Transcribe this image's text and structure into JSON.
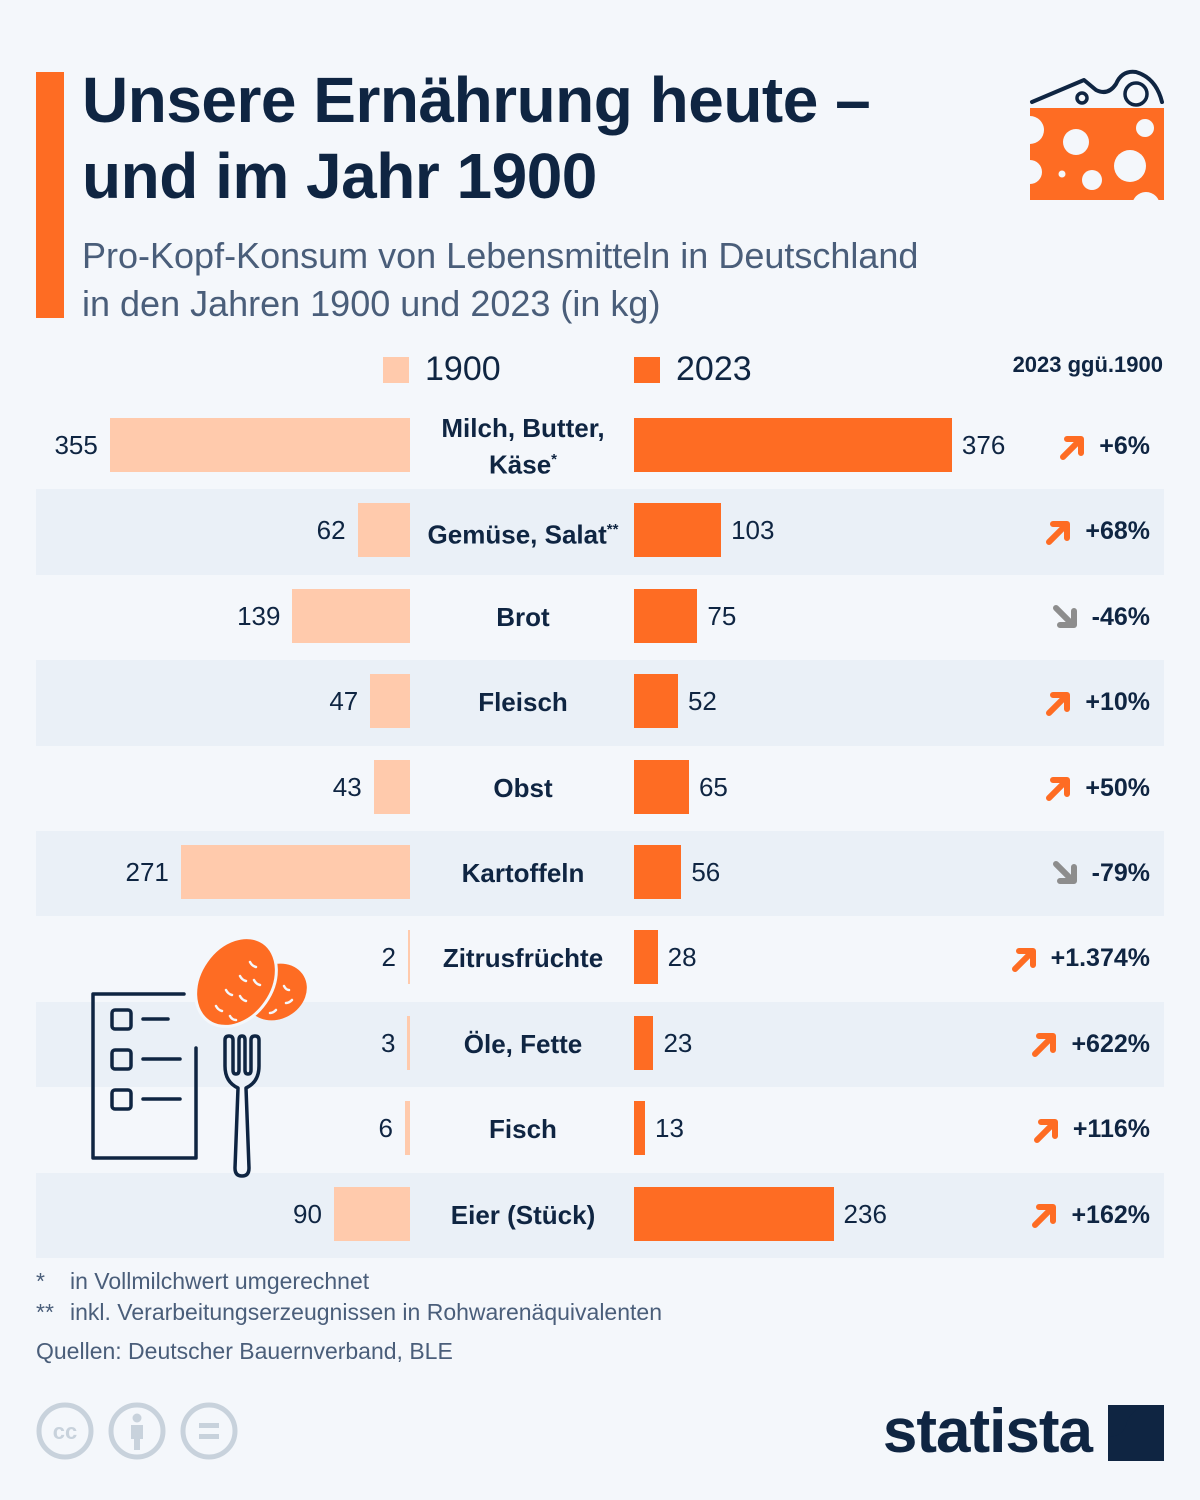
{
  "header": {
    "title_line1": "Unsere Ernährung heute –",
    "title_line2": "und im Jahr 1900",
    "subtitle_line1": "Pro-Kopf-Konsum von Lebensmitteln in Deutschland",
    "subtitle_line2": "in den Jahren 1900 und 2023 (in kg)"
  },
  "colors": {
    "accent": "#fe6c23",
    "light": "#ffcaac",
    "dark": "#0f2542",
    "down": "#8d8d8d"
  },
  "legend": {
    "series1": "1900",
    "series2": "2023",
    "change_header": "2023 ggü.1900"
  },
  "chart_data": {
    "type": "bar",
    "orientation": "horizontal-butterfly",
    "title": "Unsere Ernährung heute – und im Jahr 1900",
    "subtitle": "Pro-Kopf-Konsum von Lebensmitteln in Deutschland in den Jahren 1900 und 2023 (in kg)",
    "categories": [
      "Milch, Butter, Käse",
      "Gemüse, Salat",
      "Brot",
      "Fleisch",
      "Obst",
      "Kartoffeln",
      "Zitrusfrüchte",
      "Öle, Fette",
      "Fisch",
      "Eier (Stück)"
    ],
    "category_marks": [
      "*",
      "**",
      "",
      "",
      "",
      "",
      "",
      "",
      "",
      ""
    ],
    "series": [
      {
        "name": "1900",
        "values": [
          355,
          62,
          139,
          47,
          43,
          271,
          2,
          3,
          6,
          90
        ]
      },
      {
        "name": "2023",
        "values": [
          376,
          103,
          75,
          52,
          65,
          56,
          28,
          23,
          13,
          236
        ]
      }
    ],
    "change": [
      "+6%",
      "+68%",
      "-46%",
      "+10%",
      "+50%",
      "-79%",
      "+1.374%",
      "+622%",
      "+116%",
      "+162%"
    ],
    "change_direction": [
      "up",
      "up",
      "down",
      "up",
      "up",
      "down",
      "up",
      "up",
      "up",
      "up"
    ],
    "legend_position": "top",
    "grid": false
  },
  "footnotes": {
    "note1_mark": "*",
    "note1": "in Vollmilchwert umgerechnet",
    "note2_mark": "**",
    "note2": "inkl. Verarbeitungserzeugnissen in Rohwarenäquivalenten",
    "source": "Quellen: Deutscher Bauernverband, BLE"
  },
  "branding": {
    "logo": "statista",
    "license_icons": [
      "cc-icon",
      "by-icon",
      "nd-icon"
    ]
  }
}
